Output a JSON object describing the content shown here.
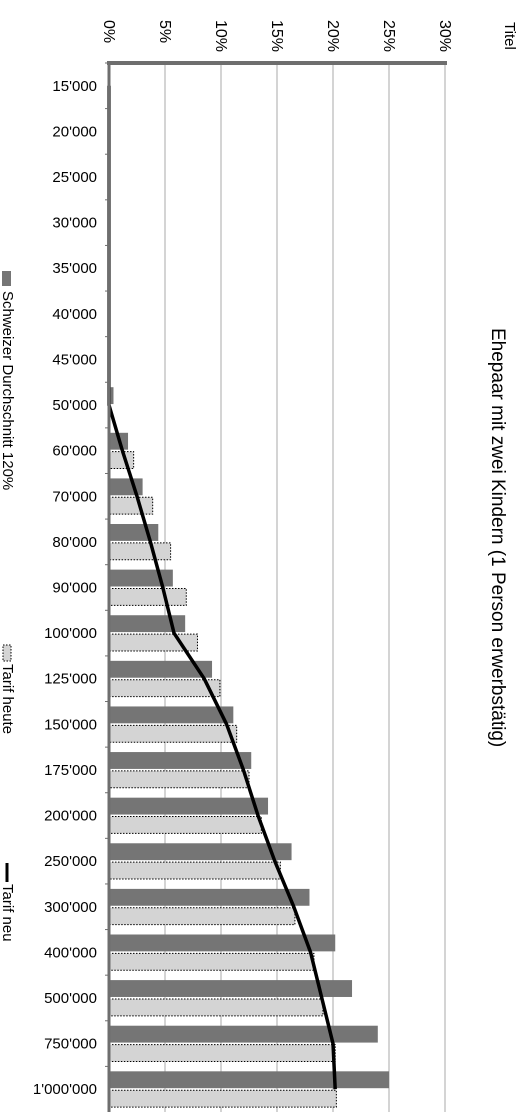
{
  "corner_label": "Titel",
  "chart_data": {
    "type": "bar",
    "title": "Ehepaar mit zwei Kindern (1 Person erwerbstätig)",
    "categories": [
      "15'000",
      "20'000",
      "25'000",
      "30'000",
      "35'000",
      "40'000",
      "45'000",
      "50'000",
      "60'000",
      "70'000",
      "80'000",
      "90'000",
      "100'000",
      "125'000",
      "150'000",
      "175'000",
      "200'000",
      "250'000",
      "300'000",
      "400'000",
      "500'000",
      "750'000",
      "1'000'000"
    ],
    "x_tick_labels": [
      "0%",
      "5%",
      "10%",
      "15%",
      "20%",
      "25%",
      "30%"
    ],
    "xlim": [
      0,
      30
    ],
    "grid": true,
    "legend_position": "left",
    "series": [
      {
        "name": "Schweizer Durchschnitt 120%",
        "type": "bar",
        "color": "#757575",
        "values": [
          0,
          0,
          0,
          0,
          0,
          0,
          0,
          0.4,
          1.7,
          3.0,
          4.4,
          5.7,
          6.8,
          9.2,
          11.1,
          12.7,
          14.2,
          16.3,
          17.9,
          20.2,
          21.7,
          24.0,
          25.0
        ]
      },
      {
        "name": "Tarif heute",
        "type": "bar",
        "color": "#d4d4d4",
        "values": [
          0,
          0,
          0,
          0,
          0,
          0,
          0,
          0,
          2.2,
          3.9,
          5.5,
          6.9,
          7.9,
          9.9,
          11.4,
          12.5,
          13.6,
          15.3,
          16.6,
          18.3,
          19.1,
          20.2,
          20.3
        ]
      },
      {
        "name": "Tarif neu",
        "type": "line",
        "color": "#000000",
        "values": [
          0,
          0,
          0,
          0,
          0,
          0,
          0,
          0,
          1.2,
          2.5,
          3.7,
          4.8,
          5.8,
          8.5,
          10.5,
          12.0,
          13.3,
          14.8,
          16.5,
          18.0,
          19.0,
          20.0,
          20.2
        ]
      }
    ]
  }
}
